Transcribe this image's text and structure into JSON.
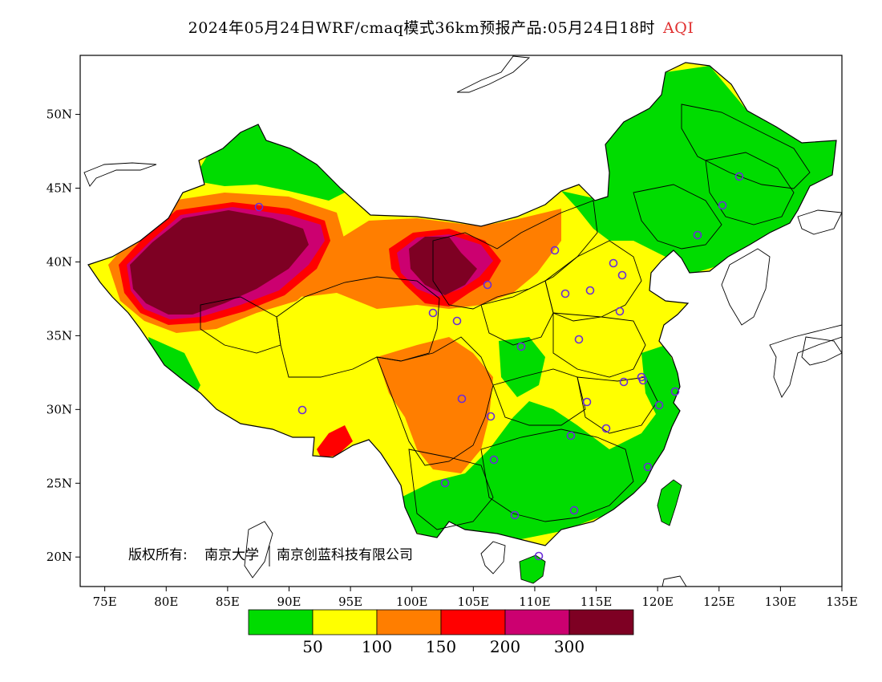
{
  "title": {
    "main": "2024年05月24日WRF/cmaq模式36km预报产品:05月24日18时",
    "product": "AQI"
  },
  "axes": {
    "longitude_ticks": [
      "75E",
      "80E",
      "85E",
      "90E",
      "95E",
      "100E",
      "105E",
      "110E",
      "115E",
      "120E",
      "125E",
      "130E",
      "135E"
    ],
    "latitude_ticks": [
      "50N",
      "45N",
      "40N",
      "35N",
      "30N",
      "25N",
      "20N"
    ]
  },
  "copyright": {
    "prefix": "版权所有:",
    "org1": "南京大学",
    "org2": "南京创蓝科技有限公司"
  },
  "legend": {
    "colors": [
      "#00dc00",
      "#ffff00",
      "#ff7e00",
      "#ff0000",
      "#cc0070",
      "#7e0023"
    ],
    "labels": [
      "50",
      "100",
      "150",
      "200",
      "300"
    ]
  },
  "colors": {
    "good": "#00dc00",
    "moderate": "#ffff00",
    "usg": "#ff7e00",
    "unhealthy": "#ff0000",
    "very_unhealthy": "#cc0070",
    "hazardous": "#7e0023",
    "station_marker": "#6a2cd8"
  }
}
